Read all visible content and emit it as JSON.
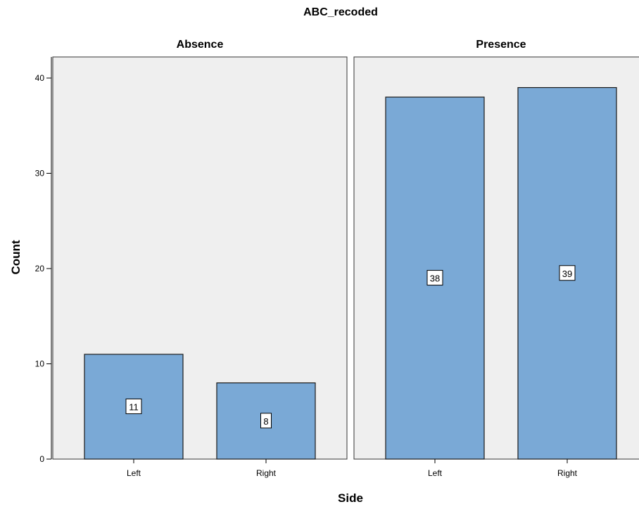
{
  "chart_data": {
    "type": "bar",
    "title": "ABC_recoded",
    "xlabel": "Side",
    "ylabel": "Count",
    "ylim": [
      0,
      40
    ],
    "yticks": [
      0,
      10,
      20,
      30,
      40
    ],
    "categories": [
      "Left",
      "Right"
    ],
    "grid": false,
    "panels": [
      {
        "name": "Absence",
        "values": [
          11,
          8
        ]
      },
      {
        "name": "Presence",
        "values": [
          38,
          39
        ]
      }
    ],
    "colors": {
      "bar": "#7aa9d6",
      "bar_stroke": "#1a1a1a",
      "plot_bg": "#efefef"
    }
  }
}
